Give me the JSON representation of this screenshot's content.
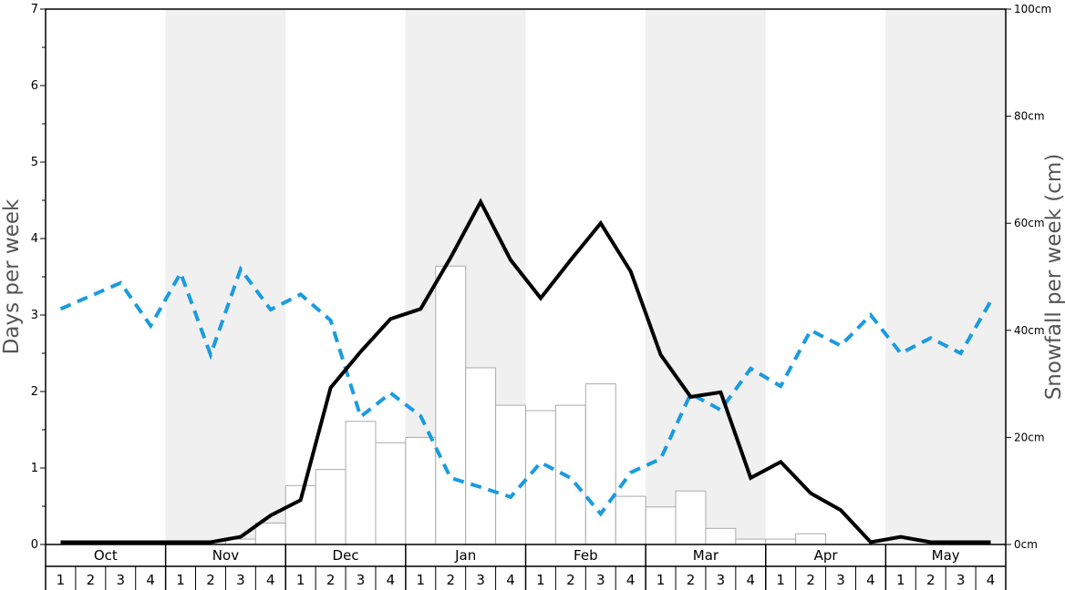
{
  "chart_data": {
    "type": "bar+line",
    "months": [
      "Oct",
      "Nov",
      "Dec",
      "Jan",
      "Feb",
      "Mar",
      "Apr",
      "May"
    ],
    "weeks": [
      "1",
      "2",
      "3",
      "4"
    ],
    "left_axis": {
      "label": "Days per week",
      "ylim": [
        0,
        7
      ],
      "ticks": [
        "0",
        "1",
        "2",
        "3",
        "4",
        "5",
        "6",
        "7"
      ]
    },
    "right_axis": {
      "label": "Snowfall per week (cm)",
      "ylim": [
        0,
        100
      ],
      "ticks": [
        "0cm",
        "20cm",
        "40cm",
        "60cm",
        "80cm",
        "100cm"
      ]
    },
    "shaded_months": [
      "Nov",
      "Jan",
      "Mar",
      "May"
    ],
    "colors": {
      "solid_line": "#000000",
      "dashed_line": "#1a9be0",
      "bar_fill": "#ffffff",
      "bar_stroke": "#aaaaaa",
      "shade": "#f0f0f0"
    },
    "series": [
      {
        "role": "bars",
        "axis": "right",
        "values": [
          0,
          0,
          0,
          0,
          0,
          0,
          1,
          4,
          11,
          14,
          23,
          19,
          20,
          52,
          33,
          26,
          25,
          26,
          30,
          9,
          7,
          10,
          3,
          1,
          1,
          2,
          0,
          0,
          0,
          0,
          0,
          0
        ]
      },
      {
        "role": "solid-line",
        "axis": "left",
        "values": [
          0.03,
          0.03,
          0.03,
          0.03,
          0.03,
          0.03,
          0.1,
          0.38,
          0.58,
          2.05,
          2.52,
          2.95,
          3.08,
          3.75,
          4.48,
          3.72,
          3.22,
          3.72,
          4.2,
          3.57,
          2.48,
          1.93,
          1.99,
          0.87,
          1.08,
          0.67,
          0.45,
          0.03,
          0.1,
          0.03,
          0.03,
          0.03
        ]
      },
      {
        "role": "dashed-line",
        "axis": "left",
        "values": [
          3.08,
          3.25,
          3.42,
          2.86,
          3.55,
          2.48,
          3.6,
          3.07,
          3.27,
          2.93,
          1.67,
          1.98,
          1.68,
          0.87,
          0.75,
          0.62,
          1.07,
          0.87,
          0.4,
          0.94,
          1.12,
          1.97,
          1.76,
          2.3,
          2.07,
          2.8,
          2.6,
          3.0,
          2.5,
          2.7,
          2.5,
          3.18
        ]
      }
    ]
  }
}
